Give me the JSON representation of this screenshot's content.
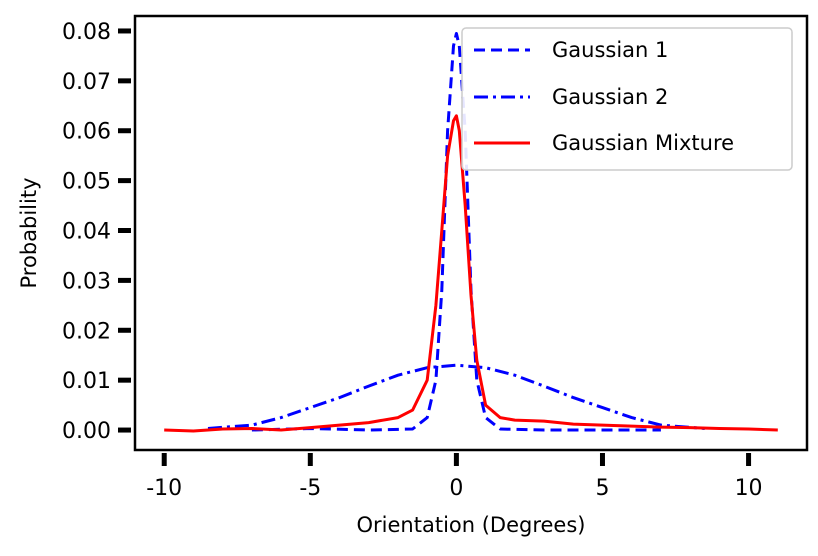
{
  "chart_data": {
    "type": "line",
    "xlabel": "Orientation (Degrees)",
    "ylabel": "Probability",
    "xlim": [
      -11,
      12
    ],
    "ylim": [
      -0.004,
      0.083
    ],
    "xticks": [
      -10,
      -5,
      0,
      5,
      10
    ],
    "xtick_labels": [
      "-10",
      "-5",
      "0",
      "5",
      "10"
    ],
    "yticks": [
      0.0,
      0.01,
      0.02,
      0.03,
      0.04,
      0.05,
      0.06,
      0.07,
      0.08
    ],
    "ytick_labels": [
      "0.00",
      "0.01",
      "0.02",
      "0.03",
      "0.04",
      "0.05",
      "0.06",
      "0.07",
      "0.08"
    ],
    "grid": false,
    "legend_position": "top-right",
    "series": [
      {
        "name": "Gaussian 1",
        "color": "#0000ff",
        "style": "dashed",
        "x": [
          -7,
          -5,
          -3,
          -1.5,
          -1,
          -0.7,
          -0.5,
          -0.3,
          -0.1,
          0,
          0.1,
          0.3,
          0.5,
          0.7,
          1,
          1.5,
          3,
          5,
          7
        ],
        "y": [
          0.0,
          0.0003,
          0.0,
          0.0002,
          0.0025,
          0.01,
          0.028,
          0.06,
          0.077,
          0.0795,
          0.077,
          0.06,
          0.028,
          0.01,
          0.0025,
          0.0002,
          0.0,
          0.0,
          0.0
        ]
      },
      {
        "name": "Gaussian 2",
        "color": "#0000ff",
        "style": "dashdot",
        "x": [
          -8.5,
          -7,
          -6,
          -5,
          -4,
          -3,
          -2,
          -1,
          0,
          1,
          2,
          3,
          4,
          5,
          6,
          7,
          8.5
        ],
        "y": [
          0.0003,
          0.001,
          0.0025,
          0.0045,
          0.0065,
          0.0088,
          0.011,
          0.0125,
          0.013,
          0.0125,
          0.011,
          0.0088,
          0.0065,
          0.0045,
          0.0025,
          0.001,
          0.0003
        ]
      },
      {
        "name": "Gaussian Mixture",
        "color": "#ff0000",
        "style": "solid",
        "x": [
          -10,
          -9,
          -8,
          -7,
          -6,
          -5,
          -4,
          -3,
          -2,
          -1.5,
          -1,
          -0.7,
          -0.5,
          -0.3,
          -0.1,
          0,
          0.1,
          0.3,
          0.5,
          0.7,
          1,
          1.5,
          2,
          3,
          4,
          5,
          6,
          7,
          8,
          9,
          10,
          11
        ],
        "y": [
          0.0,
          -0.0002,
          0.0002,
          0.0003,
          0.0,
          0.0005,
          0.001,
          0.0015,
          0.0025,
          0.004,
          0.01,
          0.025,
          0.04,
          0.055,
          0.062,
          0.063,
          0.06,
          0.045,
          0.027,
          0.014,
          0.005,
          0.0025,
          0.002,
          0.0018,
          0.0012,
          0.001,
          0.0008,
          0.0006,
          0.0005,
          0.0003,
          0.0002,
          0.0
        ]
      }
    ]
  }
}
